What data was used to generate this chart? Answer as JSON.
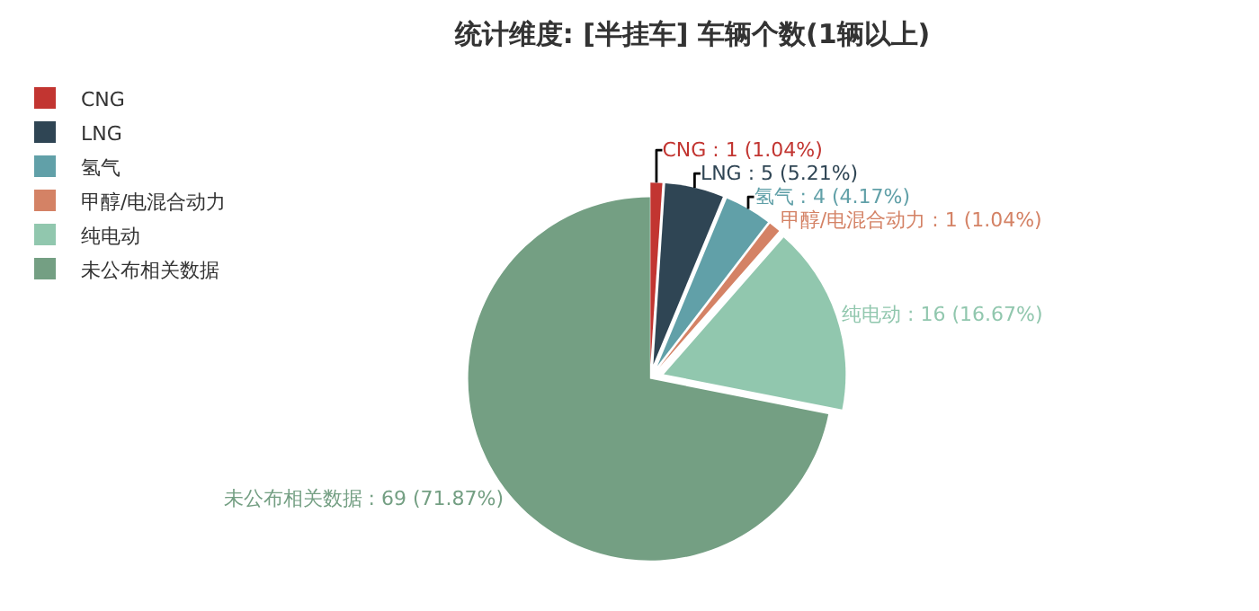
{
  "chart_data": {
    "type": "pie",
    "title": "统计维度: [半挂车] 车辆个数(1辆以上)",
    "categories": [
      "CNG",
      "LNG",
      "氢气",
      "甲醇/电混合动力",
      "纯电动",
      "未公布相关数据"
    ],
    "values": [
      1,
      5,
      4,
      1,
      16,
      69
    ],
    "colors": [
      "#c23531",
      "#2f4554",
      "#61a0a8",
      "#d48265",
      "#91c7ae",
      "#749f83"
    ],
    "value_labels": [
      "CNG : 1 (1.04%)",
      "LNG : 5 (5.21%)",
      "氢气 : 4 (4.17%)",
      "甲醇/电混合动力 : 1 (1.04%)",
      "纯电动 : 16 (16.67%)",
      "未公布相关数据 : 69 (71.87%)"
    ],
    "legend": "top left"
  }
}
